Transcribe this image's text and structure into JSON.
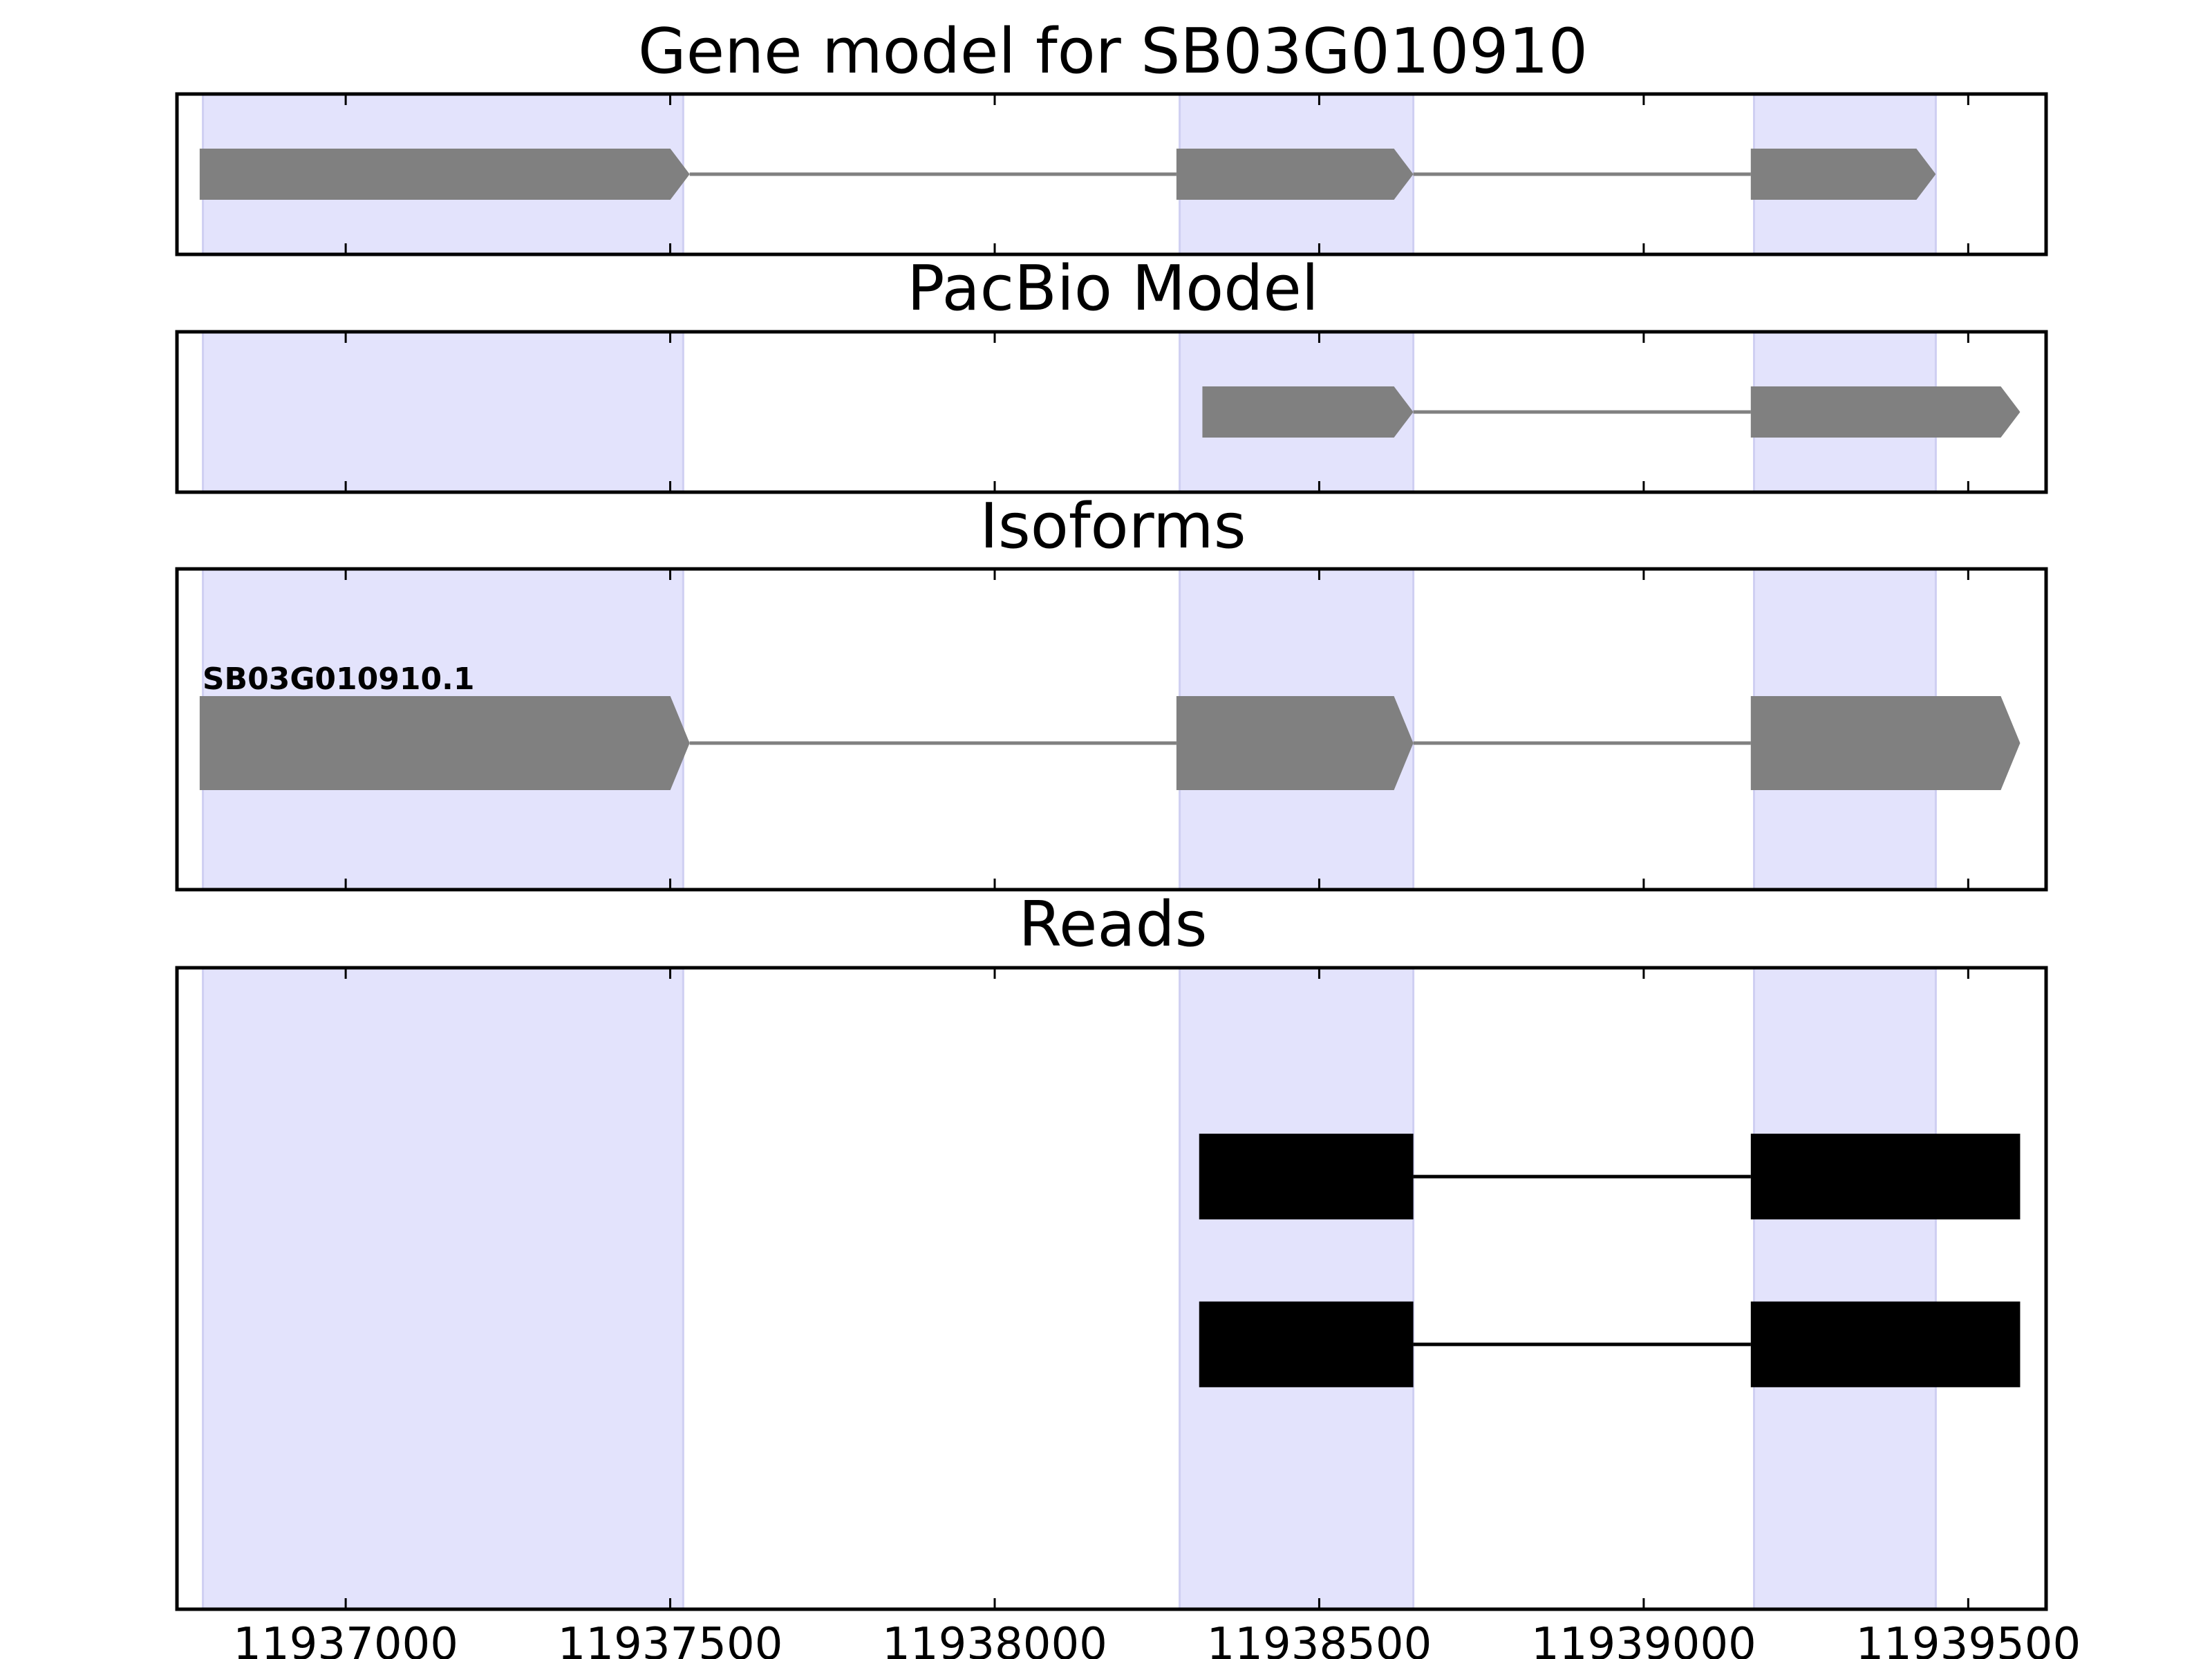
{
  "chart_data": {
    "type": "gene_structure",
    "x_axis": {
      "range": [
        11936740,
        11939620
      ],
      "ticks": [
        11937000,
        11937500,
        11938000,
        11938500,
        11939000,
        11939500
      ],
      "tick_labels": [
        "11937000",
        "11937500",
        "11938000",
        "11938500",
        "11939000",
        "11939500"
      ]
    },
    "exon_highlights": [
      [
        11936780,
        11937520
      ],
      [
        11938285,
        11938645
      ],
      [
        11939170,
        11939450
      ]
    ],
    "highlight_color": "#e3e3fc",
    "panels": [
      {
        "title": "Gene model for SB03G010910",
        "strand": "+",
        "color": "#808080",
        "models": [
          {
            "label": "",
            "exons": [
              [
                11936775,
                11937530
              ],
              [
                11938280,
                11938645
              ],
              [
                11939165,
                11939450
              ]
            ]
          }
        ]
      },
      {
        "title": "PacBio Model",
        "strand": "+",
        "color": "#808080",
        "models": [
          {
            "label": "",
            "exons": [
              [
                11938320,
                11938645
              ],
              [
                11939165,
                11939580
              ]
            ]
          }
        ]
      },
      {
        "title": "Isoforms",
        "strand": "+",
        "color": "#808080",
        "models": [
          {
            "label": "SB03G010910.1",
            "exons": [
              [
                11936775,
                11937530
              ],
              [
                11938280,
                11938645
              ],
              [
                11939165,
                11939580
              ]
            ]
          }
        ]
      },
      {
        "title": "Reads",
        "strand": "",
        "color": "#000000",
        "models": [
          {
            "label": "",
            "exons": [
              [
                11938315,
                11938645
              ],
              [
                11939165,
                11939580
              ]
            ]
          },
          {
            "label": "",
            "exons": [
              [
                11938315,
                11938645
              ],
              [
                11939165,
                11939580
              ]
            ]
          }
        ]
      }
    ]
  }
}
